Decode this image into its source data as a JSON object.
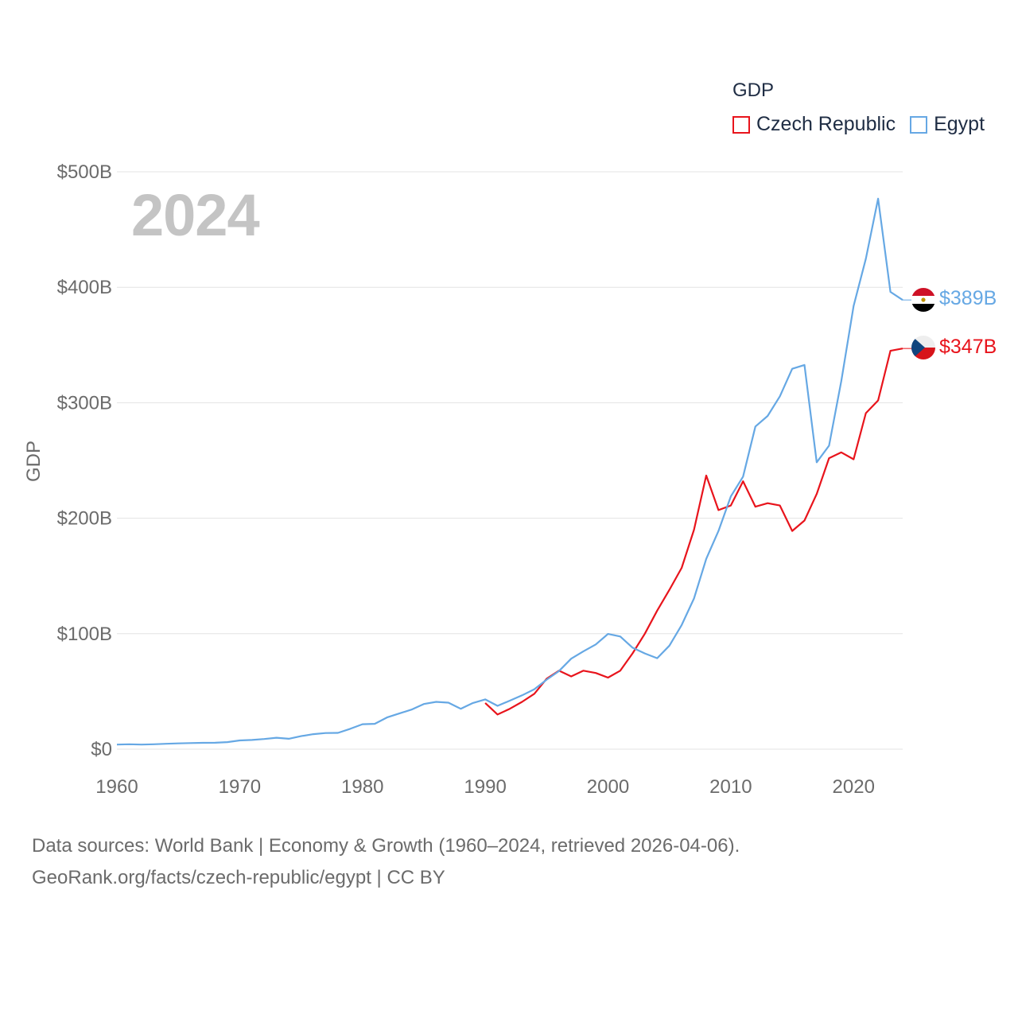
{
  "legend": {
    "title": "GDP",
    "items": [
      {
        "name": "Czech Republic",
        "color": "#e8141c"
      },
      {
        "name": "Egypt",
        "color": "#66a8e4"
      }
    ]
  },
  "year_label": "2024",
  "source": {
    "line1": "Data sources: World Bank | Economy & Growth (1960–2024, retrieved 2026-04-06).",
    "line2": "GeoRank.org/facts/czech-republic/egypt | CC BY"
  },
  "chart_data": {
    "type": "line",
    "title": "",
    "xlabel": "",
    "ylabel": "GDP",
    "xlim": [
      1960,
      2024
    ],
    "ylim": [
      0,
      500
    ],
    "x_ticks": [
      1960,
      1970,
      1980,
      1990,
      2000,
      2010,
      2020
    ],
    "y_ticks": [
      0,
      100,
      200,
      300,
      400,
      500
    ],
    "y_tick_labels": [
      "$0",
      "$100B",
      "$200B",
      "$300B",
      "$400B",
      "$500B"
    ],
    "grid": true,
    "unit": "USD billions",
    "series": [
      {
        "name": "Czech Republic",
        "color": "#e8141c",
        "end_label": "$347B",
        "flag": "czech-flag",
        "x": [
          1990,
          1991,
          1992,
          1993,
          1994,
          1995,
          1996,
          1997,
          1998,
          1999,
          2000,
          2001,
          2002,
          2003,
          2004,
          2005,
          2006,
          2007,
          2008,
          2009,
          2010,
          2011,
          2012,
          2013,
          2014,
          2015,
          2016,
          2017,
          2018,
          2019,
          2020,
          2021,
          2022,
          2023,
          2024
        ],
        "values": [
          40,
          30,
          35,
          41,
          48,
          61,
          68,
          63,
          68,
          66,
          62,
          68,
          83,
          100,
          120,
          138,
          157,
          190,
          237,
          207,
          211,
          232,
          210,
          213,
          211,
          189,
          198,
          221,
          252,
          257,
          251,
          291,
          302,
          345,
          347
        ]
      },
      {
        "name": "Egypt",
        "color": "#66a8e4",
        "end_label": "$389B",
        "flag": "egypt-flag",
        "x": [
          1960,
          1961,
          1962,
          1963,
          1964,
          1965,
          1966,
          1967,
          1968,
          1969,
          1970,
          1971,
          1972,
          1973,
          1974,
          1975,
          1976,
          1977,
          1978,
          1979,
          1980,
          1981,
          1982,
          1983,
          1984,
          1985,
          1986,
          1987,
          1988,
          1989,
          1990,
          1991,
          1992,
          1993,
          1994,
          1995,
          1996,
          1997,
          1998,
          1999,
          2000,
          2001,
          2002,
          2003,
          2004,
          2005,
          2006,
          2007,
          2008,
          2009,
          2010,
          2011,
          2012,
          2013,
          2014,
          2015,
          2016,
          2017,
          2018,
          2019,
          2020,
          2021,
          2022,
          2023,
          2024
        ],
        "values": [
          4,
          4.3,
          4,
          4.3,
          4.7,
          5,
          5.3,
          5.5,
          5.6,
          6.1,
          7.6,
          8,
          8.8,
          9.9,
          9,
          11.3,
          13,
          14,
          14.1,
          17.6,
          21.6,
          22,
          27.5,
          30.9,
          34.3,
          39.1,
          41,
          40.3,
          35,
          40,
          43.1,
          37.5,
          42,
          46.6,
          51.9,
          60.2,
          67.6,
          78.4,
          84.8,
          90.7,
          99.8,
          97.6,
          87.9,
          82.9,
          78.8,
          89.7,
          107.5,
          130.5,
          164.8,
          189,
          218.9,
          236,
          279.4,
          288.6,
          305.6,
          329.4,
          332.7,
          248.4,
          262.8,
          318.7,
          383.8,
          424.7,
          476.7,
          396,
          389
        ]
      }
    ]
  }
}
